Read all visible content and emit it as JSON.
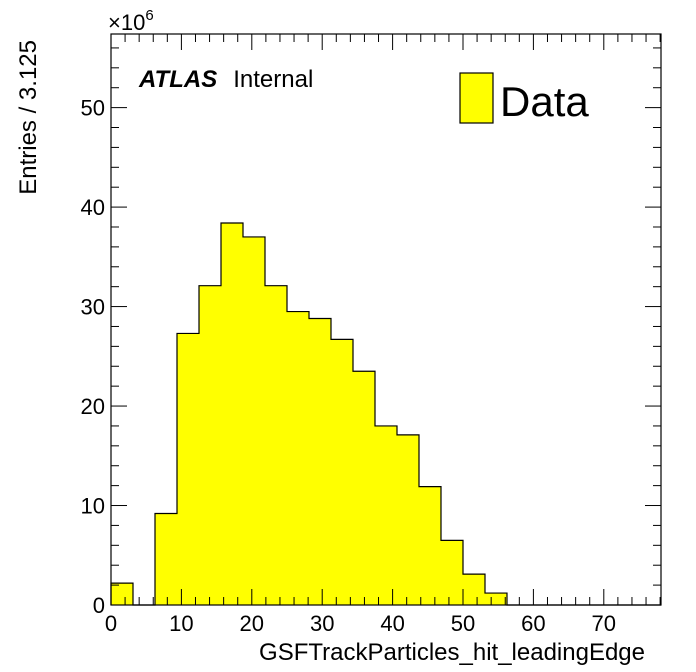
{
  "chart_data": {
    "type": "bar",
    "xlabel": "GSFTrackParticles_hit_leadingEdge",
    "ylabel": "Entries / 3.125",
    "y_multiplier_label": "×10",
    "y_multiplier_exponent": "6",
    "xlim": [
      0,
      78.125
    ],
    "ylim": [
      0,
      57.4
    ],
    "x_ticks": [
      "0",
      "10",
      "20",
      "30",
      "40",
      "50",
      "60",
      "70"
    ],
    "x_tick_values": [
      0,
      10,
      20,
      30,
      40,
      50,
      60,
      70
    ],
    "y_ticks": [
      "0",
      "10",
      "20",
      "30",
      "40",
      "50"
    ],
    "y_tick_values": [
      0,
      10,
      20,
      30,
      40,
      50
    ],
    "bin_width": 3.125,
    "bin_edges_start": 0,
    "values": [
      2.2,
      0,
      9.2,
      27.3,
      32.1,
      38.4,
      37.0,
      32.1,
      29.5,
      28.8,
      26.7,
      23.5,
      18.0,
      17.1,
      11.9,
      6.5,
      3.1,
      1.2,
      0,
      0,
      0,
      0,
      0,
      0,
      0
    ],
    "fill_color": "#ffff00",
    "line_color": "#000000",
    "legend": {
      "entries": [
        "Data"
      ],
      "placement": "top-right"
    },
    "annotation": {
      "bold": "ATLAS",
      "normal": "Internal"
    },
    "grid": false
  }
}
